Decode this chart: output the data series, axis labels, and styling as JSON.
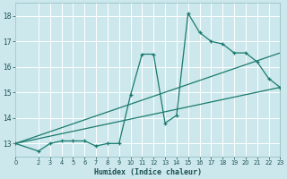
{
  "xlabel": "Humidex (Indice chaleur)",
  "bg_color": "#cce8ec",
  "grid_color": "#b0d4d8",
  "line_color": "#1a7a6e",
  "xlim": [
    0,
    23
  ],
  "ylim": [
    12.5,
    18.5
  ],
  "yticks": [
    13,
    14,
    15,
    16,
    17,
    18
  ],
  "xticks": [
    0,
    2,
    3,
    4,
    5,
    6,
    7,
    8,
    9,
    10,
    11,
    12,
    13,
    14,
    15,
    16,
    17,
    18,
    19,
    20,
    21,
    22,
    23
  ],
  "curve_x": [
    0,
    2,
    3,
    4,
    5,
    6,
    7,
    8,
    9,
    10,
    11,
    12,
    13,
    14,
    15,
    16,
    17,
    18,
    19,
    20,
    21,
    22,
    23
  ],
  "curve_y": [
    13.0,
    12.7,
    13.0,
    13.1,
    13.1,
    13.1,
    12.9,
    13.0,
    13.0,
    14.9,
    16.5,
    16.5,
    13.8,
    14.1,
    18.1,
    17.35,
    17.0,
    16.9,
    16.55,
    16.55,
    16.2,
    15.55,
    15.2
  ],
  "line1_x": [
    0,
    23
  ],
  "line1_y": [
    13.0,
    16.55
  ],
  "line2_x": [
    0,
    23
  ],
  "line2_y": [
    13.0,
    15.2
  ]
}
